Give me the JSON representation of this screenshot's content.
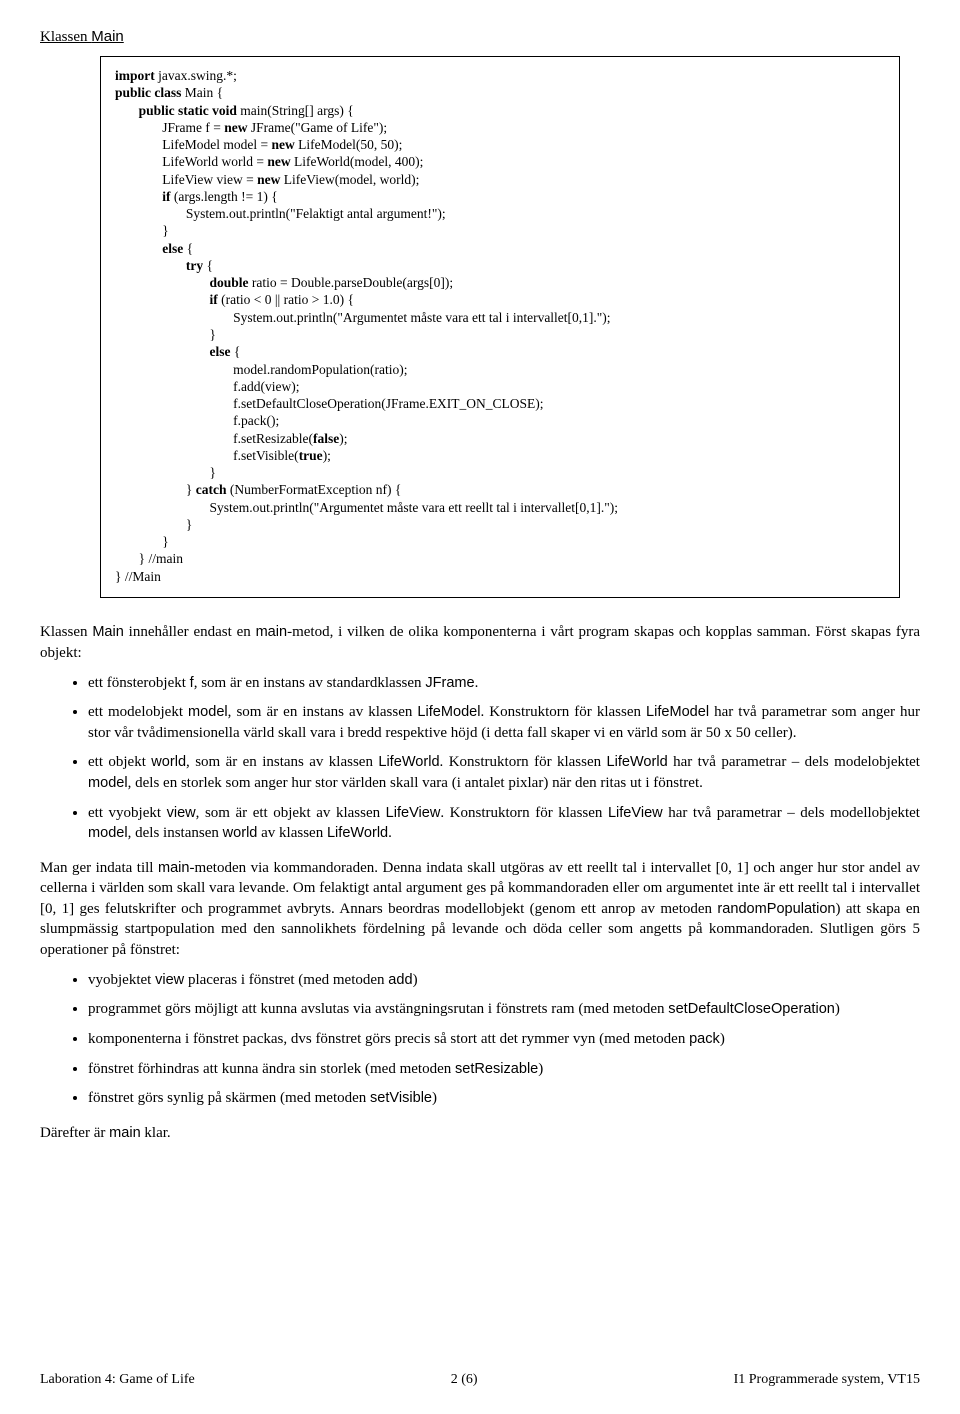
{
  "heading_pre": "Klassen ",
  "heading_class": "Main",
  "code": {
    "l1a": "import",
    "l1b": " javax.swing.*;",
    "l2a": "public class",
    "l2b": " Main {",
    "l3a": "public static void",
    "l3b": " main(String[] args) {",
    "l4a": "JFrame f = ",
    "l4b": "new",
    "l4c": " JFrame(\"Game of Life\");",
    "l5a": "LifeModel model = ",
    "l5b": "new",
    "l5c": " LifeModel(50, 50);",
    "l6a": "LifeWorld world = ",
    "l6b": "new",
    "l6c": " LifeWorld(model, 400);",
    "l7a": "LifeView view = ",
    "l7b": "new",
    "l7c": " LifeView(model, world);",
    "l8a": "if",
    "l8b": " (args.length != 1) {",
    "l9": "System.out.println(\"Felaktigt antal argument!\");",
    "l10": "}",
    "l11a": "else",
    "l11b": " {",
    "l12a": "try",
    "l12b": " {",
    "l13a": "double",
    "l13b": " ratio = Double.parseDouble(args[0]);",
    "l14a": "if",
    "l14b": " (ratio < 0 || ratio > 1.0) {",
    "l15": "System.out.println(\"Argumentet måste vara ett tal i intervallet[0,1].\");",
    "l16": "}",
    "l17a": "else",
    "l17b": " {",
    "l18": "model.randomPopulation(ratio);",
    "l19": "f.add(view);",
    "l20": "f.setDefaultCloseOperation(JFrame.EXIT_ON_CLOSE);",
    "l21": "f.pack();",
    "l22a": "f.setResizable(",
    "l22b": "false",
    "l22c": ");",
    "l23a": "f.setVisible(",
    "l23b": "true",
    "l23c": ");",
    "l24": "}",
    "l25a": "} ",
    "l25b": "catch",
    "l25c": " (NumberFormatException nf) {",
    "l26": "System.out.println(\"Argumentet måste vara ett reellt tal i intervallet[0,1].\");",
    "l27": "}",
    "l28": "}",
    "l29": "} //main",
    "l30": "} //Main"
  },
  "para1_a": "Klassen ",
  "para1_main": "Main",
  "para1_b": " innehåller endast en ",
  "para1_mainm": "main",
  "para1_c": "-metod, i vilken de olika komponenterna i vårt program skapas och kopplas samman. Först skapas fyra objekt:",
  "b1_a": "ett fönsterobjekt ",
  "b1_f": "f",
  "b1_b": ", som är en instans av standardklassen ",
  "b1_jf": "JFrame",
  "b1_c": ".",
  "b2_a": "ett modelobjekt ",
  "b2_m": "model",
  "b2_b": ", som är en instans av klassen ",
  "b2_lm": "LifeModel",
  "b2_c": ". Konstruktorn för klassen ",
  "b2_lm2": "LifeModel",
  "b2_d": " har två parametrar som anger hur stor vår tvådimensionella värld skall vara i bredd respektive höjd (i detta fall skaper vi en värld som är 50 x 50 celler).",
  "b3_a": "ett objekt ",
  "b3_w": "world",
  "b3_b": ", som är en instans av klassen ",
  "b3_lw": "LifeWorld",
  "b3_c": ".  Konstruktorn för klassen ",
  "b3_lw2": "LifeWorld",
  "b3_d": " har två parametrar – dels modelobjektet ",
  "b3_m": "model",
  "b3_e": ", dels en storlek som anger hur stor världen skall vara (i antalet pixlar) när den ritas ut i fönstret.",
  "b4_a": "ett vyobjekt ",
  "b4_v": "view",
  "b4_b": ", som är ett objekt av klassen ",
  "b4_lv": "LifeView",
  "b4_c": ". Konstruktorn för klassen ",
  "b4_lv2": "LifeView",
  "b4_d": " har två parametrar – dels modellobjektet ",
  "b4_m": "model",
  "b4_e": ", dels instansen ",
  "b4_w": "world",
  "b4_f": " av klassen ",
  "b4_lw": "LifeWorld",
  "b4_g": ".",
  "para2_a": "Man ger indata till ",
  "para2_main": "main",
  "para2_b": "-metoden via kommandoraden. Denna indata skall utgöras av ett reellt tal i intervallet [0, 1] och anger hur stor andel av cellerna i världen som skall vara levande.  Om felaktigt antal argument ges på kommandoraden eller om argumentet inte är ett reellt tal i intervallet [0, 1] ges felutskrifter och programmet avbryts. Annars beordras modellobjekt (genom ett anrop av metoden ",
  "para2_rp": "randomPopulation",
  "para2_c": ") att skapa en slumpmässig startpopulation med den sannolikhets fördelning på levande och döda celler som angetts på kommandoraden. Slutligen görs 5 operationer på fönstret:",
  "c1_a": "vyobjektet ",
  "c1_v": "view",
  "c1_b": " placeras i fönstret (med metoden ",
  "c1_add": "add",
  "c1_c": ")",
  "c2_a": "programmet  görs möjligt att kunna avslutas via avstängningsrutan i fönstrets ram (med metoden ",
  "c2_m": "setDefaultCloseOperation",
  "c2_b": ")",
  "c3_a": "komponenterna i fönstret packas, dvs fönstret görs precis så stort att det rymmer vyn (med metoden ",
  "c3_m": "pack",
  "c3_b": ")",
  "c4_a": "fönstret förhindras att kunna ändra sin storlek (med metoden ",
  "c4_m": "setResizable",
  "c4_b": ")",
  "c5_a": "fönstret görs synlig på skärmen (med metoden ",
  "c5_m": "setVisible",
  "c5_b": ")",
  "para3_a": "Därefter är ",
  "para3_m": "main",
  "para3_b": " klar.",
  "footer_left": "Laboration 4: Game of Life",
  "footer_mid": "2 (6)",
  "footer_right": "I1 Programmerade system, VT15"
}
